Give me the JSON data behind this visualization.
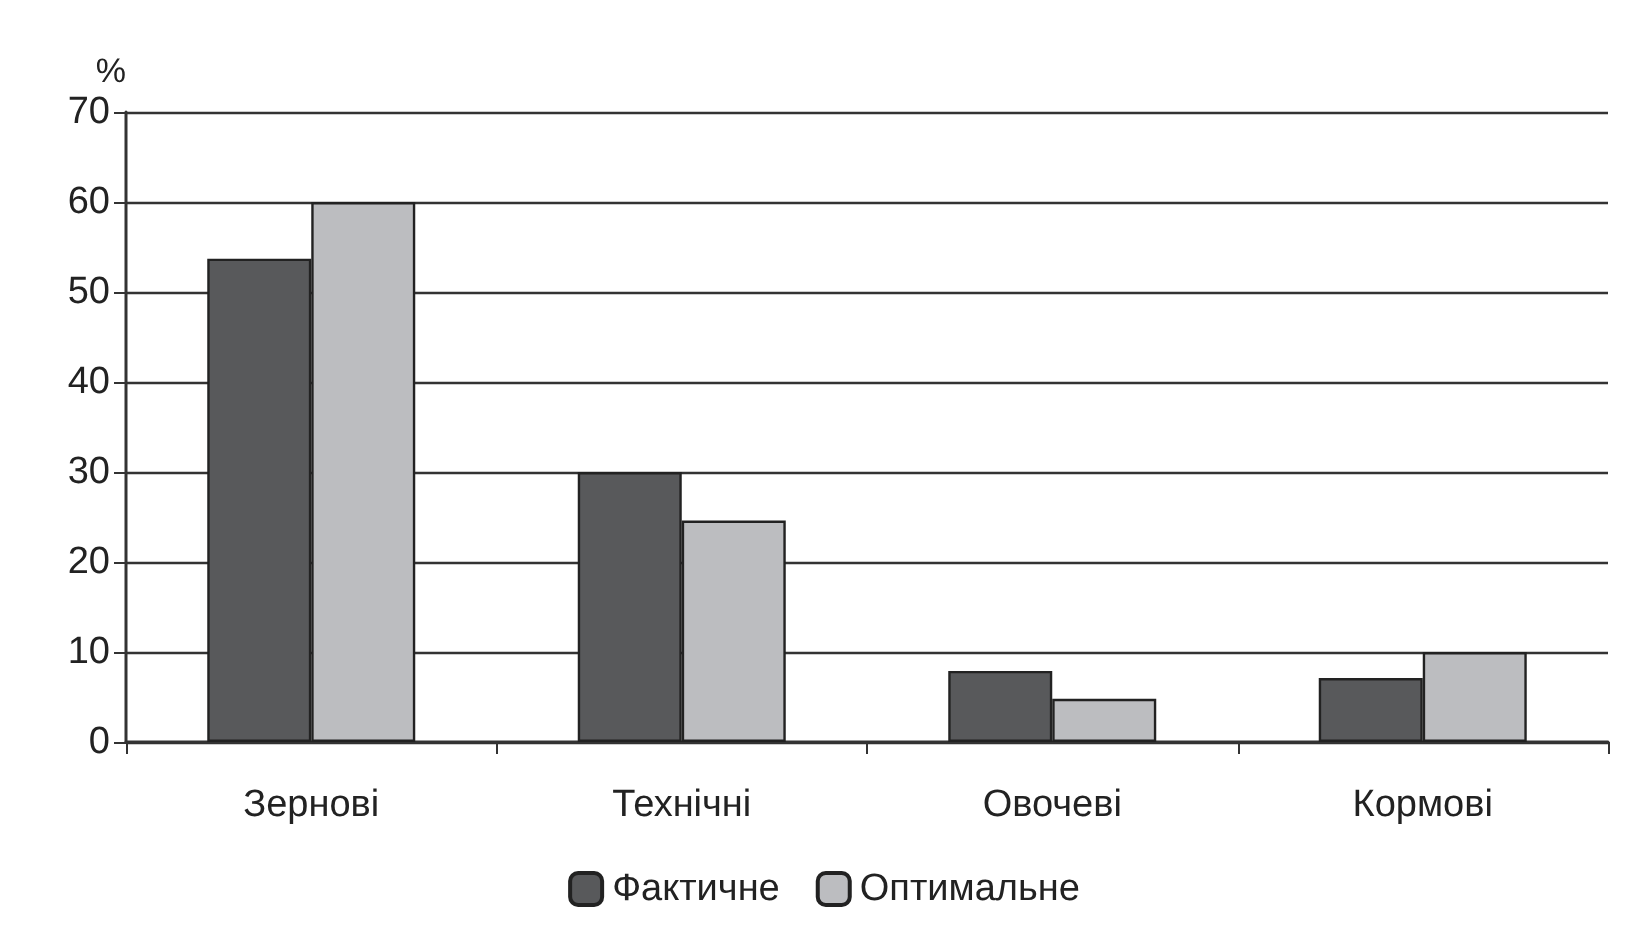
{
  "chart_data": {
    "type": "bar",
    "ylabel": "%",
    "categories": [
      "Зернові",
      "Технічні",
      "Овочеві",
      "Кормові"
    ],
    "series": [
      {
        "name": "Фактичне",
        "color": "#58595b",
        "values": [
          53.7,
          30,
          7.9,
          7.1
        ]
      },
      {
        "name": "Оптимальне",
        "color": "#bcbdc0",
        "values": [
          60,
          24.6,
          4.8,
          10
        ]
      }
    ],
    "ylim": [
      0,
      70
    ],
    "yticks": [
      0,
      10,
      20,
      30,
      40,
      50,
      60,
      70
    ],
    "grid": "y",
    "legend": "bottom"
  }
}
